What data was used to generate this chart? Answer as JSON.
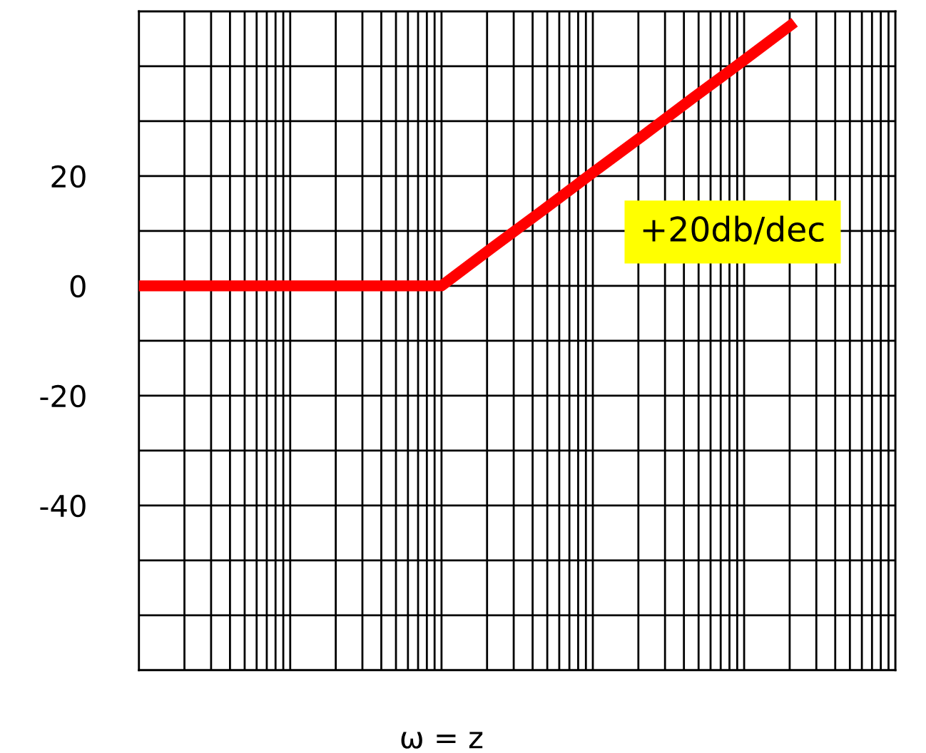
{
  "chart_data": {
    "type": "line",
    "categories": [
      null,
      null,
      null,
      null,
      null,
      null,
      "ω = z",
      null,
      null,
      null,
      null,
      null,
      null,
      null,
      null,
      null
    ],
    "ylim": [
      -70,
      50
    ],
    "yticks": [
      {
        "value": -70,
        "label": null
      },
      {
        "value": -60,
        "label": null
      },
      {
        "value": -50,
        "label": null
      },
      -40,
      {
        "value": -30,
        "label": null
      },
      -20,
      {
        "value": -10,
        "label": null
      },
      0,
      {
        "value": 10,
        "label": null
      },
      20,
      {
        "value": 30,
        "label": null
      },
      {
        "value": 40,
        "label": null
      },
      {
        "value": 50,
        "label": null
      }
    ],
    "grid": true,
    "marker": "none",
    "line_style": "solid",
    "series": [
      {
        "color": "#ff0000",
        "values": [
          0,
          0,
          0,
          0,
          0,
          0,
          0,
          6.9,
          13.7,
          20.6,
          27.4,
          34.3,
          41.1,
          48,
          null,
          null
        ]
      }
    ],
    "annotations": [
      "+20db/dec"
    ]
  }
}
